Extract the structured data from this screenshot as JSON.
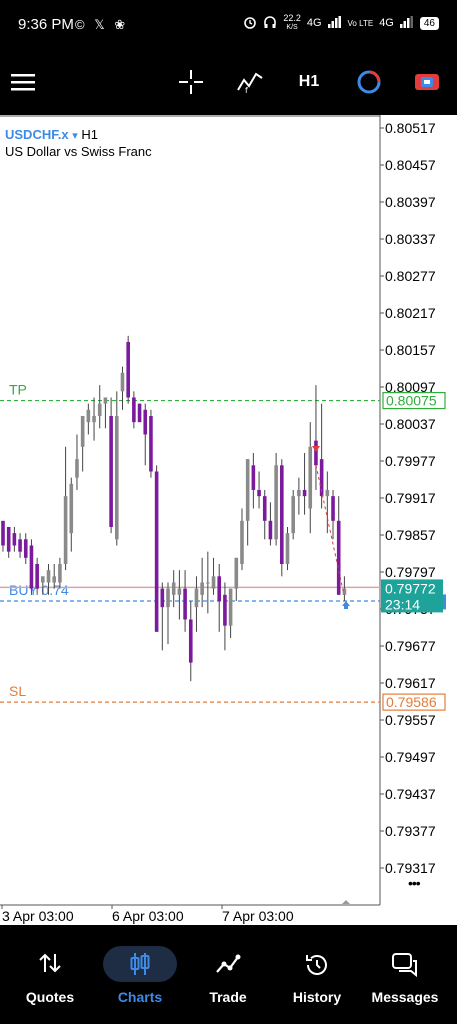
{
  "status_bar": {
    "time": "9:36 PM",
    "icons": "© 𝕏 ❀",
    "speed": "22.2",
    "speed_unit": "K/S",
    "network": "4G",
    "lte": "Vo LTE",
    "battery": "46"
  },
  "toolbar": {
    "menu_icon": "hamburger-icon",
    "crosshair_icon": "crosshair-icon",
    "indicator_icon": "indicator-icon",
    "timeframe": "H1",
    "chart_type_icon": "circle-icon",
    "trade_icon": "trade-icon"
  },
  "chart": {
    "symbol": "USDCHF.x",
    "dropdown": "▾",
    "timeframe": "H1",
    "description": "US Dollar vs Swiss Franc",
    "more_icon": "•••"
  },
  "chart_data": {
    "type": "candlestick",
    "price_ticks": [
      "0.80517",
      "0.80457",
      "0.80397",
      "0.80337",
      "0.80277",
      "0.80217",
      "0.80157",
      "0.80097",
      "0.80037",
      "0.79977",
      "0.79917",
      "0.79857",
      "0.79797",
      "0.79737",
      "0.79677",
      "0.79617",
      "0.79557",
      "0.79497",
      "0.79437",
      "0.79377",
      "0.79317"
    ],
    "time_labels": [
      "3 Apr 03:00",
      "6 Apr 03:00",
      "7 Apr 03:00"
    ],
    "ylim": [
      0.7929,
      0.80545
    ],
    "current_price": "0.79772",
    "countdown": "23:14",
    "lines": [
      {
        "label": "TP",
        "price": 0.80075,
        "price_label": "0.80075",
        "color": "#2fae3c"
      },
      {
        "label": "BUY 0.74",
        "price": 0.7975,
        "price_label": "",
        "color": "#3d8be6"
      },
      {
        "label": "SL",
        "price": 0.79586,
        "price_label": "0.79586",
        "color": "#e27d3a"
      }
    ],
    "candles": [
      [
        0.7988,
        0.7987,
        0.7983,
        0.7984
      ],
      [
        0.7987,
        0.7986,
        0.7982,
        0.7983
      ],
      [
        0.7986,
        0.7987,
        0.7983,
        0.7984
      ],
      [
        0.7985,
        0.7986,
        0.7982,
        0.7983
      ],
      [
        0.7985,
        0.7986,
        0.7981,
        0.7982
      ],
      [
        0.7984,
        0.7985,
        0.7976,
        0.7977
      ],
      [
        0.7981,
        0.7982,
        0.7976,
        0.7977
      ],
      [
        0.7978,
        0.7979,
        0.7976,
        0.7979
      ],
      [
        0.7978,
        0.7981,
        0.7976,
        0.798
      ],
      [
        0.7978,
        0.7981,
        0.7977,
        0.7979
      ],
      [
        0.7978,
        0.7982,
        0.7977,
        0.7981
      ],
      [
        0.7981,
        0.8,
        0.798,
        0.7992
      ],
      [
        0.7986,
        0.7995,
        0.7983,
        0.7994
      ],
      [
        0.7995,
        0.8002,
        0.7993,
        0.7998
      ],
      [
        0.8,
        0.8005,
        0.7996,
        0.8005
      ],
      [
        0.8004,
        0.8007,
        0.8002,
        0.8006
      ],
      [
        0.8004,
        0.8008,
        0.8001,
        0.8005
      ],
      [
        0.8005,
        0.801,
        0.8003,
        0.8007
      ],
      [
        0.8007,
        0.8008,
        0.8003,
        0.8008
      ],
      [
        0.8005,
        0.8008,
        0.7986,
        0.7987
      ],
      [
        0.7985,
        0.8009,
        0.7984,
        0.8005
      ],
      [
        0.8009,
        0.8013,
        0.8006,
        0.8012
      ],
      [
        0.8017,
        0.8018,
        0.8007,
        0.8008
      ],
      [
        0.8008,
        0.8009,
        0.8003,
        0.8004
      ],
      [
        0.8007,
        0.8007,
        0.8004,
        0.8004
      ],
      [
        0.8006,
        0.8007,
        0.7997,
        0.8002
      ],
      [
        0.8005,
        0.8006,
        0.7995,
        0.7996
      ],
      [
        0.7996,
        0.7997,
        0.797,
        0.797
      ],
      [
        0.7977,
        0.7978,
        0.7967,
        0.7974
      ],
      [
        0.7974,
        0.7978,
        0.7968,
        0.7977
      ],
      [
        0.7976,
        0.798,
        0.7974,
        0.7978
      ],
      [
        0.7976,
        0.798,
        0.7972,
        0.7977
      ],
      [
        0.7977,
        0.798,
        0.797,
        0.7972
      ],
      [
        0.7972,
        0.7975,
        0.7962,
        0.7965
      ],
      [
        0.7974,
        0.7979,
        0.797,
        0.7977
      ],
      [
        0.7976,
        0.7982,
        0.7974,
        0.7978
      ],
      [
        0.7978,
        0.7983,
        0.7973,
        0.7978
      ],
      [
        0.7977,
        0.7982,
        0.7976,
        0.7979
      ],
      [
        0.7979,
        0.7981,
        0.797,
        0.7975
      ],
      [
        0.7976,
        0.7978,
        0.7967,
        0.7971
      ],
      [
        0.7971,
        0.7977,
        0.7969,
        0.7977
      ],
      [
        0.7977,
        0.7982,
        0.7975,
        0.7982
      ],
      [
        0.7981,
        0.799,
        0.798,
        0.7988
      ],
      [
        0.7988,
        0.7998,
        0.7984,
        0.7998
      ],
      [
        0.7997,
        0.7999,
        0.799,
        0.7993
      ],
      [
        0.7993,
        0.7996,
        0.799,
        0.7992
      ],
      [
        0.7992,
        0.7993,
        0.7985,
        0.7988
      ],
      [
        0.7988,
        0.7991,
        0.7984,
        0.7985
      ],
      [
        0.7985,
        0.7999,
        0.7984,
        0.7997
      ],
      [
        0.7997,
        0.7998,
        0.7979,
        0.7981
      ],
      [
        0.7981,
        0.7987,
        0.798,
        0.7986
      ],
      [
        0.7986,
        0.7993,
        0.7985,
        0.7992
      ],
      [
        0.7992,
        0.7995,
        0.7989,
        0.7993
      ],
      [
        0.7993,
        0.7999,
        0.7989,
        0.7992
      ],
      [
        0.799,
        0.8004,
        0.7986,
        0.8
      ],
      [
        0.8001,
        0.801,
        0.7993,
        0.7997
      ],
      [
        0.7998,
        0.8007,
        0.799,
        0.7992
      ],
      [
        0.7992,
        0.7996,
        0.7986,
        0.7993
      ],
      [
        0.7992,
        0.7993,
        0.7985,
        0.7988
      ],
      [
        0.7988,
        0.7992,
        0.7976,
        0.7976
      ],
      [
        0.7976,
        0.7979,
        0.7975,
        0.7977
      ]
    ]
  },
  "bottom_nav": {
    "items": [
      {
        "label": "Quotes",
        "icon": "quotes-icon"
      },
      {
        "label": "Charts",
        "icon": "candles-icon"
      },
      {
        "label": "Trade",
        "icon": "trade-line-icon"
      },
      {
        "label": "History",
        "icon": "history-icon"
      },
      {
        "label": "Messages",
        "icon": "messages-icon"
      }
    ],
    "active": "Charts"
  }
}
